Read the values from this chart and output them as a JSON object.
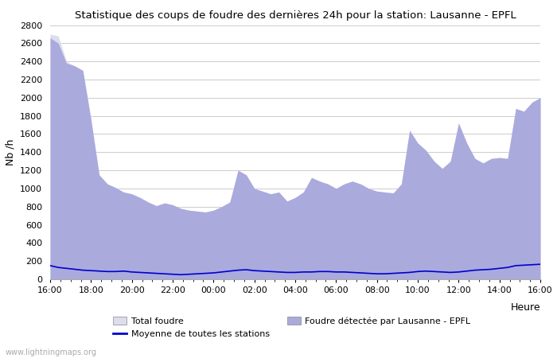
{
  "title": "Statistique des coups de foudre des dernières 24h pour la station: Lausanne - EPFL",
  "xlabel": "Heure",
  "ylabel": "Nb /h",
  "ylim": [
    0,
    2800
  ],
  "yticks": [
    0,
    200,
    400,
    600,
    800,
    1000,
    1200,
    1400,
    1600,
    1800,
    2000,
    2200,
    2400,
    2600,
    2800
  ],
  "xtick_labels": [
    "16:00",
    "18:00",
    "20:00",
    "22:00",
    "00:00",
    "02:00",
    "04:00",
    "06:00",
    "08:00",
    "10:00",
    "12:00",
    "14:00",
    "16:00"
  ],
  "background_color": "#ffffff",
  "plot_bg_color": "#ffffff",
  "grid_color": "#cccccc",
  "fill_total_color": "#ddddf0",
  "fill_lausanne_color": "#aaaadd",
  "line_moyenne_color": "#0000cc",
  "watermark": "www.lightningmaps.org",
  "total_foudre": [
    2700,
    2680,
    2400,
    2350,
    2300,
    1760,
    1150,
    1050,
    1010,
    960,
    940,
    900,
    850,
    810,
    840,
    820,
    780,
    760,
    750,
    740,
    760,
    800,
    850,
    1200,
    1150,
    1000,
    970,
    940,
    960,
    860,
    900,
    960,
    1120,
    1080,
    1050,
    1000,
    1050,
    1080,
    1050,
    1000,
    970,
    960,
    950,
    1050,
    1640,
    1500,
    1420,
    1300,
    1220,
    1300,
    1720,
    1500,
    1330,
    1280,
    1330,
    1340,
    1330,
    1880,
    1850,
    1950,
    2000
  ],
  "lausanne_epfl": [
    2660,
    2600,
    2380,
    2350,
    2300,
    1760,
    1150,
    1050,
    1010,
    960,
    940,
    900,
    850,
    810,
    840,
    820,
    780,
    760,
    750,
    740,
    760,
    800,
    850,
    1200,
    1150,
    1000,
    970,
    940,
    960,
    860,
    900,
    960,
    1120,
    1080,
    1050,
    1000,
    1050,
    1080,
    1050,
    1000,
    970,
    960,
    950,
    1050,
    1640,
    1500,
    1420,
    1300,
    1220,
    1300,
    1720,
    1500,
    1330,
    1280,
    1330,
    1340,
    1330,
    1880,
    1850,
    1950,
    2000
  ],
  "moyenne": [
    150,
    130,
    120,
    110,
    100,
    95,
    90,
    85,
    85,
    90,
    80,
    75,
    70,
    65,
    60,
    55,
    50,
    55,
    60,
    65,
    70,
    80,
    90,
    100,
    105,
    95,
    90,
    85,
    80,
    75,
    75,
    80,
    80,
    85,
    85,
    80,
    80,
    75,
    70,
    65,
    60,
    60,
    65,
    70,
    75,
    85,
    90,
    85,
    80,
    75,
    80,
    90,
    100,
    105,
    110,
    120,
    130,
    150,
    155,
    160,
    165
  ]
}
